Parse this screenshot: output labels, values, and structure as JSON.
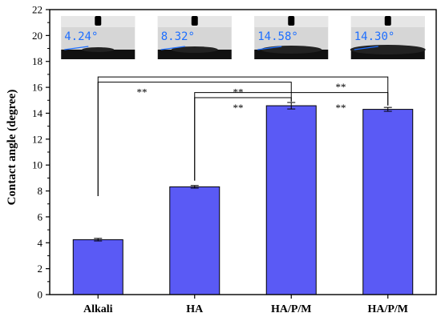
{
  "chart_data": {
    "type": "bar",
    "ylabel": "Contact angle (degree)",
    "xlabel": "",
    "ylim": [
      0,
      22
    ],
    "yticks": [
      0,
      2,
      4,
      6,
      8,
      10,
      12,
      14,
      16,
      18,
      20,
      22
    ],
    "categories": [
      "Alkali",
      "HA",
      "HA/P/M",
      "HA/P/M"
    ],
    "values": [
      4.24,
      8.32,
      14.58,
      14.3
    ],
    "errors": [
      0.1,
      0.1,
      0.25,
      0.15
    ],
    "bar_color": "#5a5af5",
    "significance": [
      {
        "from": 0,
        "to": 2,
        "label": "**"
      },
      {
        "from": 0,
        "to": 3,
        "label": "**"
      },
      {
        "from": 1,
        "to": 2,
        "label": "**"
      },
      {
        "from": 1,
        "to": 3,
        "label": "**"
      }
    ],
    "insets": [
      "4.24°",
      "8.32°",
      "14.58°",
      "14.30°"
    ]
  }
}
